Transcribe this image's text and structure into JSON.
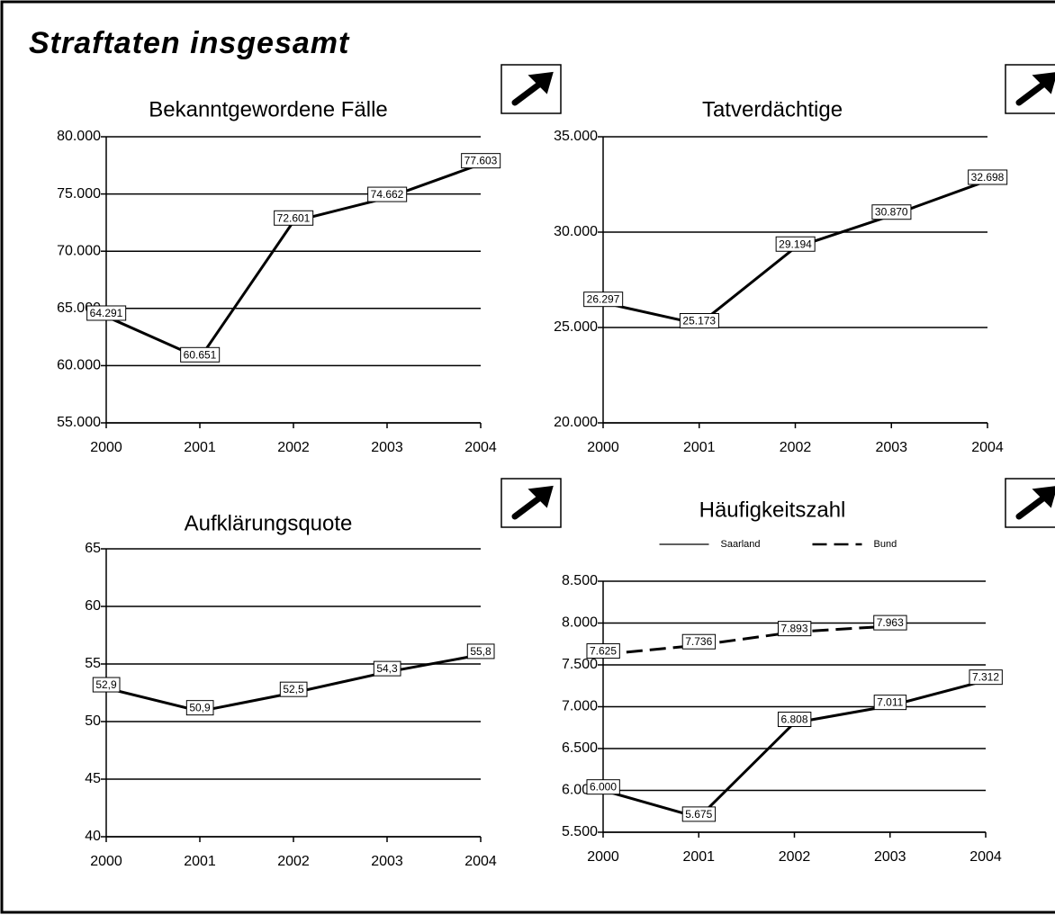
{
  "title": "Straftaten insgesamt",
  "chart_data": [
    {
      "type": "line",
      "title": "Bekanntgewordene Fälle",
      "categories": [
        "2000",
        "2001",
        "2002",
        "2003",
        "2004"
      ],
      "values": [
        64291,
        60651,
        72601,
        74662,
        77603
      ],
      "value_labels": [
        "64.291",
        "60.651",
        "72.601",
        "74.662",
        "77.603"
      ],
      "color": "#000000",
      "grid": true,
      "ylim": [
        55000,
        80000
      ],
      "yticks": [
        {
          "value": 55000,
          "label": "55.000"
        },
        {
          "value": 60000,
          "label": "60.000"
        },
        {
          "value": 65000,
          "label": "65.000"
        },
        {
          "value": 70000,
          "label": "70.000"
        },
        {
          "value": 75000,
          "label": "75.000"
        },
        {
          "value": 80000,
          "label": "80.000"
        }
      ]
    },
    {
      "type": "line",
      "title": "Tatverdächtige",
      "categories": [
        "2000",
        "2001",
        "2002",
        "2003",
        "2004"
      ],
      "values": [
        26297,
        25173,
        29194,
        30870,
        32698
      ],
      "value_labels": [
        "26.297",
        "25.173",
        "29.194",
        "30.870",
        "32.698"
      ],
      "color": "#000000",
      "grid": true,
      "ylim": [
        20000,
        35000
      ],
      "yticks": [
        {
          "value": 20000,
          "label": "20.000"
        },
        {
          "value": 25000,
          "label": "25.000"
        },
        {
          "value": 30000,
          "label": "30.000"
        },
        {
          "value": 35000,
          "label": "35.000"
        }
      ]
    },
    {
      "type": "line",
      "title": "Aufklärungsquote",
      "categories": [
        "2000",
        "2001",
        "2002",
        "2003",
        "2004"
      ],
      "values": [
        52.9,
        50.9,
        52.5,
        54.3,
        55.8
      ],
      "value_labels": [
        "52,9",
        "50,9",
        "52,5",
        "54,3",
        "55,8"
      ],
      "color": "#000000",
      "grid": true,
      "ylim": [
        40,
        65
      ],
      "yticks": [
        40,
        45,
        50,
        55,
        60,
        65
      ]
    },
    {
      "type": "line",
      "title": "Häufigkeitszahl",
      "categories": [
        "2000",
        "2001",
        "2002",
        "2003",
        "2004"
      ],
      "series": [
        {
          "name": "Saarland",
          "color": "#000000",
          "dash": "solid",
          "values": [
            6000,
            5675,
            6808,
            7011,
            7312
          ],
          "value_labels": [
            "6.000",
            "5.675",
            "6.808",
            "7.011",
            "7.312"
          ]
        },
        {
          "name": "Bund",
          "color": "#000000",
          "dash": "dashed",
          "values": [
            7625,
            7736,
            7893,
            7963,
            null
          ],
          "value_labels": [
            "7.625",
            "7.736",
            "7.893",
            "7.963",
            null
          ]
        }
      ],
      "legend": "top",
      "grid": true,
      "ylim": [
        5500,
        8500
      ],
      "yticks": [
        {
          "value": 5500,
          "label": "5.500"
        },
        {
          "value": 6000,
          "label": "6.000"
        },
        {
          "value": 6500,
          "label": "6.500"
        },
        {
          "value": 7000,
          "label": "7.000"
        },
        {
          "value": 7500,
          "label": "7.500"
        },
        {
          "value": 8000,
          "label": "8.000"
        },
        {
          "value": 8500,
          "label": "8.500"
        }
      ]
    }
  ]
}
